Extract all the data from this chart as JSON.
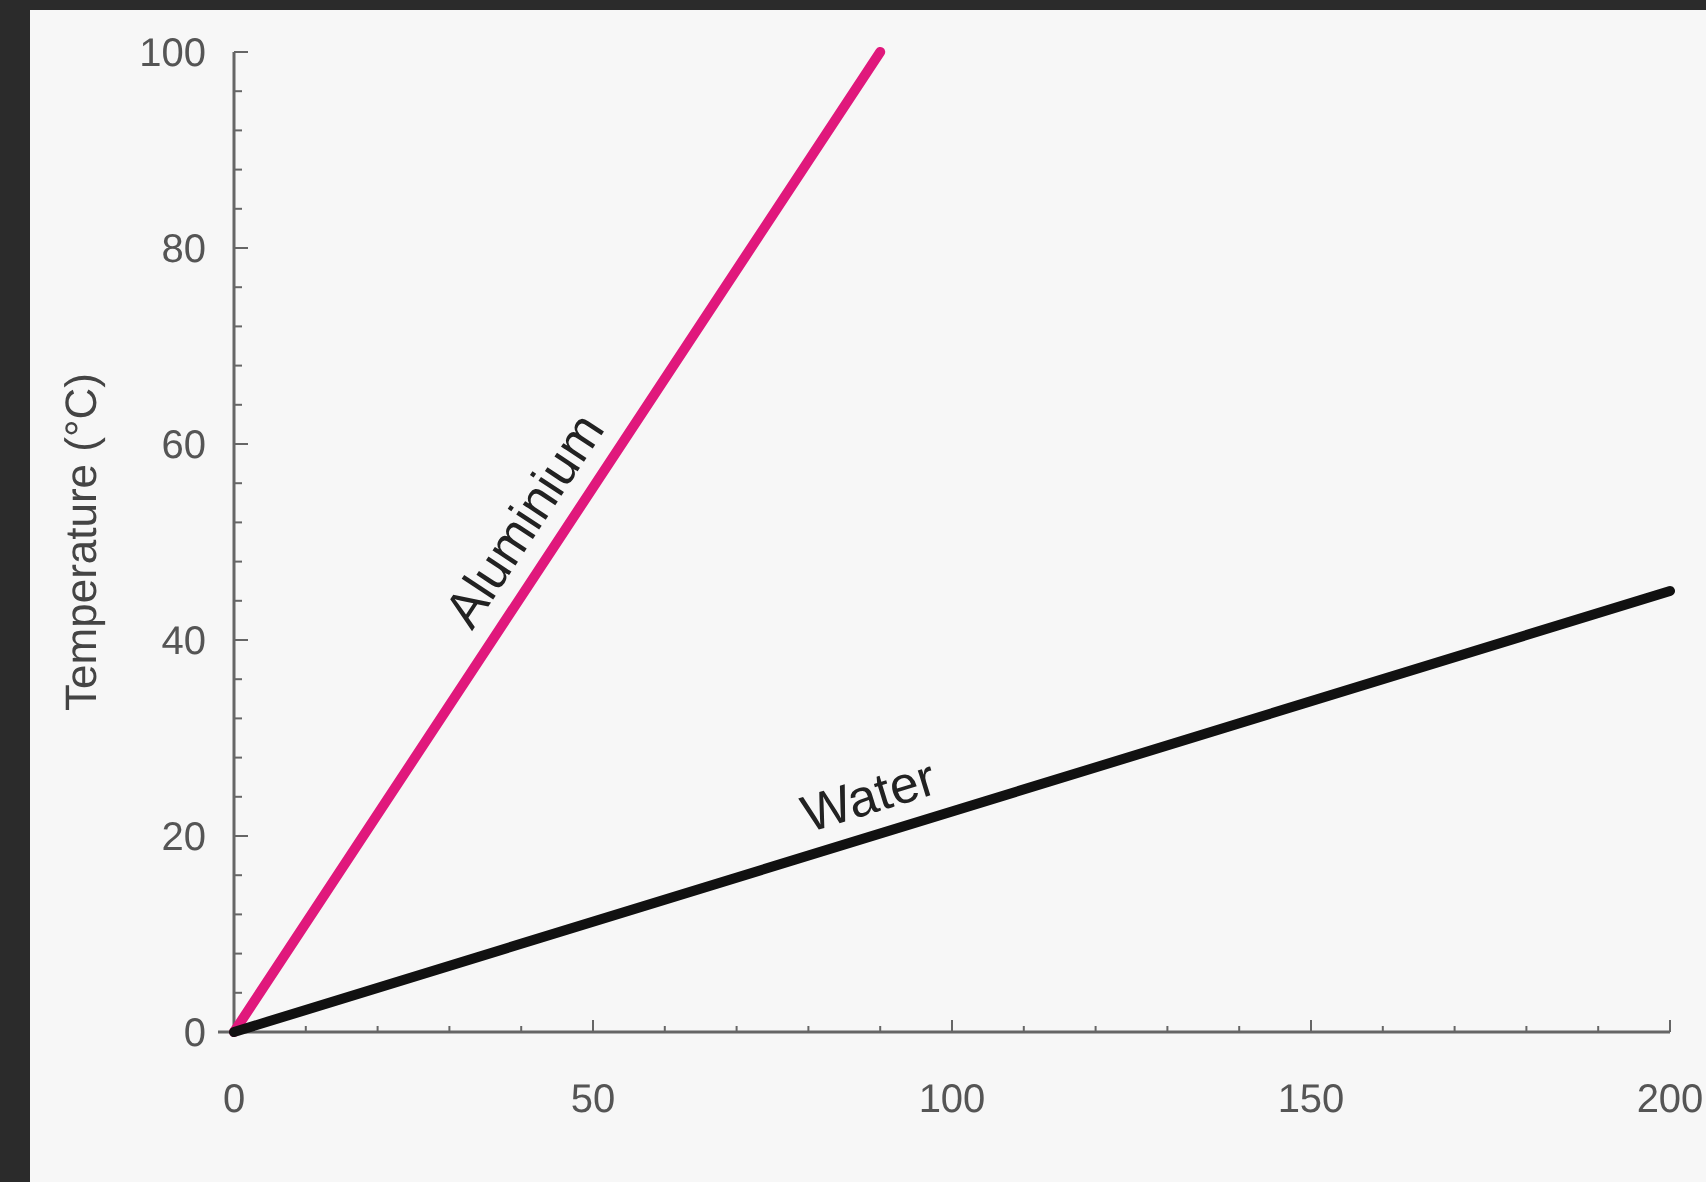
{
  "chart_data": {
    "type": "line",
    "ylabel": "Temperature (°C)",
    "xlim": [
      0,
      200
    ],
    "ylim": [
      0,
      100
    ],
    "xticks": [
      0,
      {
        "value": 10,
        "label": null
      },
      {
        "value": 20,
        "label": null
      },
      {
        "value": 30,
        "label": null
      },
      {
        "value": 40,
        "label": null
      },
      50,
      {
        "value": 60,
        "label": null
      },
      {
        "value": 70,
        "label": null
      },
      {
        "value": 80,
        "label": null
      },
      {
        "value": 90,
        "label": null
      },
      100,
      {
        "value": 110,
        "label": null
      },
      {
        "value": 120,
        "label": null
      },
      {
        "value": 130,
        "label": null
      },
      {
        "value": 140,
        "label": null
      },
      150,
      {
        "value": 160,
        "label": null
      },
      {
        "value": 170,
        "label": null
      },
      {
        "value": 180,
        "label": null
      },
      {
        "value": 190,
        "label": null
      },
      200
    ],
    "yticks": [
      0,
      {
        "value": 4,
        "label": null
      },
      {
        "value": 8,
        "label": null
      },
      {
        "value": 12,
        "label": null
      },
      {
        "value": 16,
        "label": null
      },
      20,
      {
        "value": 24,
        "label": null
      },
      {
        "value": 28,
        "label": null
      },
      {
        "value": 32,
        "label": null
      },
      {
        "value": 36,
        "label": null
      },
      40,
      {
        "value": 44,
        "label": null
      },
      {
        "value": 48,
        "label": null
      },
      {
        "value": 52,
        "label": null
      },
      {
        "value": 56,
        "label": null
      },
      60,
      {
        "value": 64,
        "label": null
      },
      {
        "value": 68,
        "label": null
      },
      {
        "value": 72,
        "label": null
      },
      {
        "value": 76,
        "label": null
      },
      80,
      {
        "value": 84,
        "label": null
      },
      {
        "value": 88,
        "label": null
      },
      {
        "value": 92,
        "label": null
      },
      {
        "value": 96,
        "label": null
      },
      100
    ],
    "series": [
      {
        "name": "Aluminium",
        "color": "#e0187c",
        "x": [
          0,
          90
        ],
        "values": [
          0,
          100
        ]
      },
      {
        "name": "Water",
        "color": "#111111",
        "x": [
          0,
          200
        ],
        "values": [
          0,
          45
        ]
      }
    ]
  }
}
